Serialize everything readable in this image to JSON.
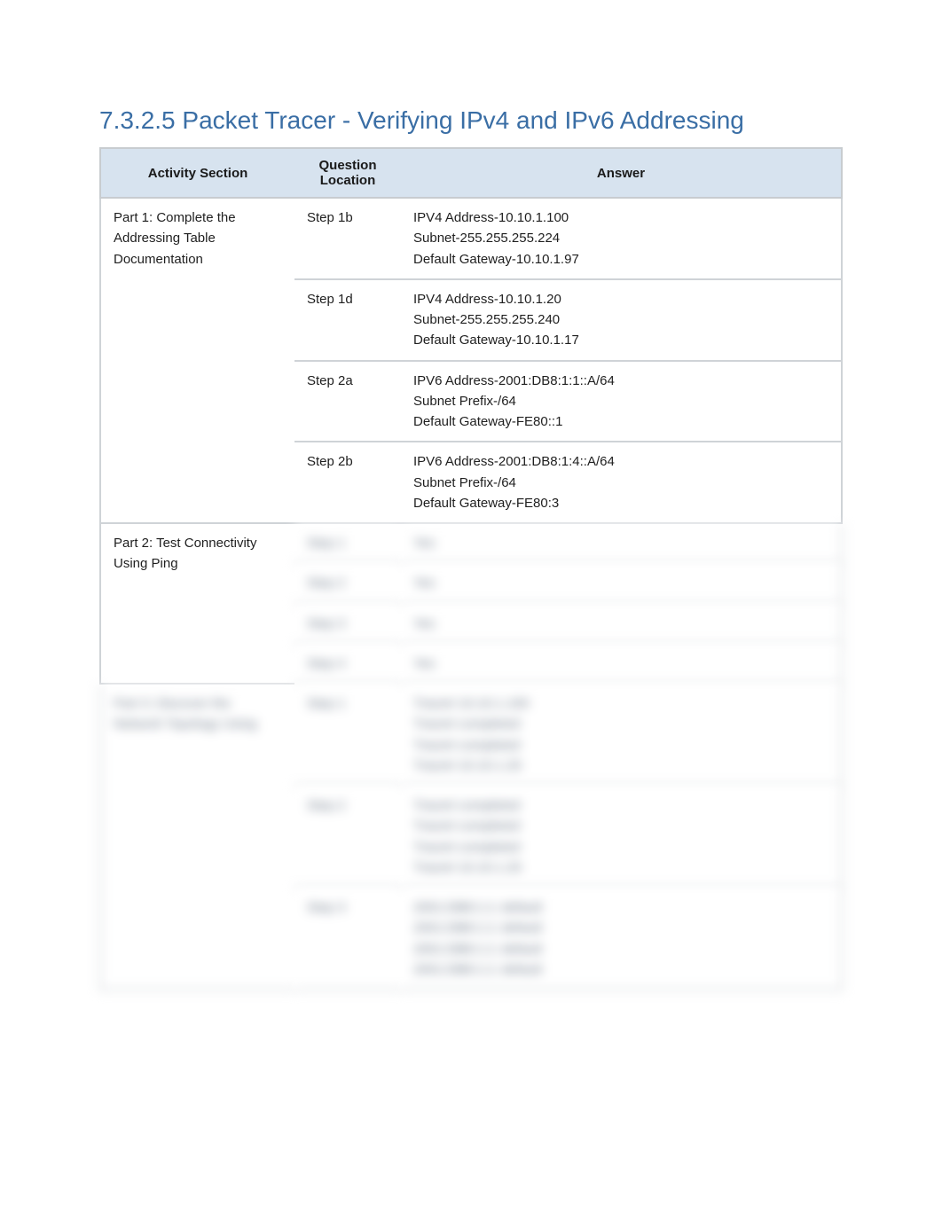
{
  "title_text": "7.3.2.5 Packet Tracer - Verifying IPv4 and IPv6 Addressing",
  "title_color": "#3a6ea5",
  "header_bg": "#d7e3ef",
  "border_color": "#cfd3d7",
  "columns": {
    "section": "Activity Section",
    "question": "Question Location",
    "answer": "Answer"
  },
  "sections": [
    {
      "name": "Part 1: Complete the Addressing Table Documentation",
      "blurred": false,
      "rows": [
        {
          "q": "Step 1b",
          "a": [
            "IPV4 Address-10.10.1.100",
            "Subnet-255.255.255.224",
            "Default Gateway-10.10.1.97"
          ],
          "blurred": false
        },
        {
          "q": "Step 1d",
          "a": [
            "IPV4 Address-10.10.1.20",
            "Subnet-255.255.255.240",
            "Default Gateway-10.10.1.17"
          ],
          "blurred": false
        },
        {
          "q": "Step 2a",
          "a": [
            "IPV6 Address-2001:DB8:1:1::A/64",
            "Subnet Prefix-/64",
            "Default Gateway-FE80::1"
          ],
          "blurred": false
        },
        {
          "q": "Step 2b",
          "a": [
            "IPV6 Address-2001:DB8:1:4::A/64",
            "Subnet Prefix-/64",
            "Default Gateway-FE80:3"
          ],
          "blurred": false
        }
      ]
    },
    {
      "name": "Part 2: Test Connectivity Using Ping",
      "blurred": false,
      "rows": [
        {
          "q": "Step 1",
          "a": [
            "Yes"
          ],
          "blurred": true
        },
        {
          "q": "Step 2",
          "a": [
            "Yes"
          ],
          "blurred": true
        },
        {
          "q": "Step 3",
          "a": [
            "Yes"
          ],
          "blurred": true
        },
        {
          "q": "Step 4",
          "a": [
            "Yes"
          ],
          "blurred": true
        }
      ]
    },
    {
      "name": "Part 3: Discover the Network Topology Using",
      "blurred": true,
      "rows": [
        {
          "q": "Step 1",
          "a": [
            "Tracert 10.10.1.100",
            "Tracert completed",
            "Tracert completed",
            "Tracert 10.10.1.20"
          ],
          "blurred": true
        },
        {
          "q": "Step 2",
          "a": [
            "Tracert completed",
            "Tracert completed",
            "Tracert completed",
            "Tracert 10.10.1.20"
          ],
          "blurred": true
        },
        {
          "q": "Step 3",
          "a": [
            "2001:DB8:1:1::default",
            "2001:DB8:1:1::default",
            "2001:DB8:1:1::default",
            "2001:DB8:1:1::default"
          ],
          "blurred": true
        }
      ]
    }
  ]
}
